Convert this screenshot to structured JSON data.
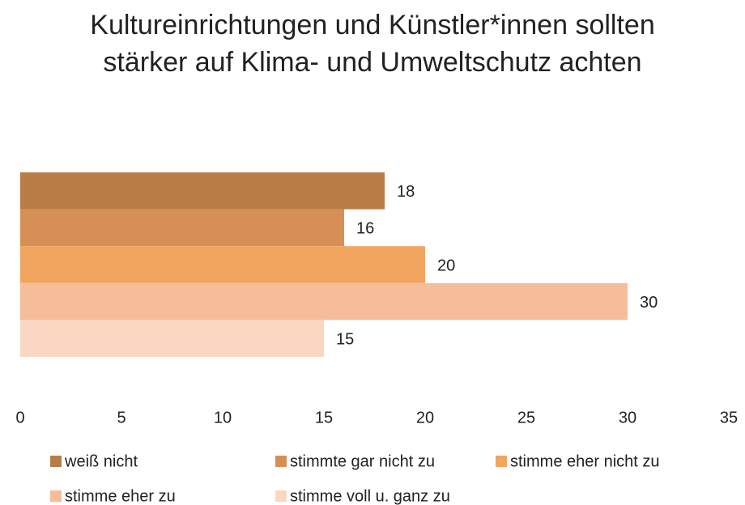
{
  "chart_data": {
    "type": "bar",
    "orientation": "horizontal",
    "title": "Kultureinrichtungen und Künstler*innen sollten stärker auf Klima- und Umweltschutz achten",
    "series": [
      {
        "name": "weiß nicht",
        "color": "#b87d47",
        "values": [
          18
        ]
      },
      {
        "name": "stimmte gar nicht zu",
        "color": "#d68f54",
        "values": [
          16
        ]
      },
      {
        "name": "stimme eher nicht zu",
        "color": "#f2a55f",
        "values": [
          20
        ]
      },
      {
        "name": "stimme eher zu",
        "color": "#f5bd99",
        "values": [
          30
        ]
      },
      {
        "name": "stimme voll u. ganz zu",
        "color": "#f9d7c2",
        "values": [
          15
        ]
      }
    ],
    "xlim": [
      0,
      35
    ],
    "xticks": [
      0,
      5,
      10,
      15,
      20,
      25,
      30,
      35
    ],
    "grid": false,
    "legend": "bottom"
  }
}
